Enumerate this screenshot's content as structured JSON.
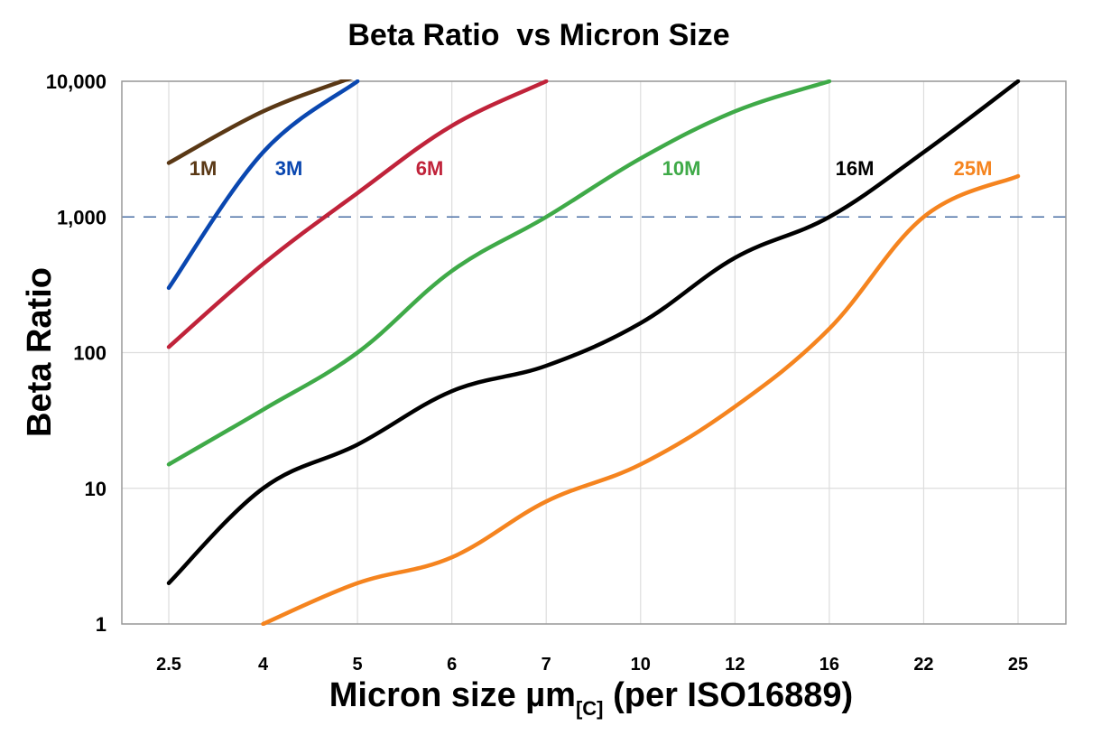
{
  "chart_data": {
    "type": "line",
    "title": "Beta Ratio  vs Micron Size",
    "xlabel": "Micron size µm",
    "xlabel_subscript": "[C]",
    "xlabel_suffix": " (per ISO16889)",
    "ylabel": "Beta Ratio",
    "y_scale": "log",
    "ylim": [
      1,
      10000
    ],
    "y_ticks": [
      "1",
      "10",
      "100",
      "1,000",
      "10,000"
    ],
    "y_tick_values": [
      1,
      10,
      100,
      1000,
      10000
    ],
    "reference_line": {
      "value": 1000,
      "style": "dashed",
      "color": "#4a6fa5"
    },
    "categories": [
      "2.5",
      "4",
      "5",
      "6",
      "7",
      "10",
      "12",
      "16",
      "22",
      "25"
    ],
    "grid": true,
    "series": [
      {
        "name": "1M",
        "color": "#5a3815",
        "values": [
          2500,
          6000,
          11000,
          null,
          null,
          null,
          null,
          null,
          null,
          null
        ]
      },
      {
        "name": "3M",
        "color": "#0a47b0",
        "values": [
          300,
          3000,
          10000,
          null,
          null,
          null,
          null,
          null,
          null,
          null
        ]
      },
      {
        "name": "6M",
        "color": "#c0233a",
        "values": [
          110,
          450,
          1500,
          4700,
          10000,
          null,
          null,
          null,
          null,
          null
        ]
      },
      {
        "name": "10M",
        "color": "#3faa48",
        "values": [
          15,
          38,
          100,
          400,
          1000,
          2700,
          6000,
          10000,
          null,
          null
        ]
      },
      {
        "name": "16M",
        "color": "#000000",
        "values": [
          2,
          10,
          21,
          52,
          80,
          165,
          500,
          1000,
          3000,
          10000
        ]
      },
      {
        "name": "25M",
        "color": "#f5841f",
        "values": [
          null,
          1,
          2,
          3.1,
          8,
          15,
          40,
          150,
          1000,
          2000
        ]
      }
    ]
  }
}
